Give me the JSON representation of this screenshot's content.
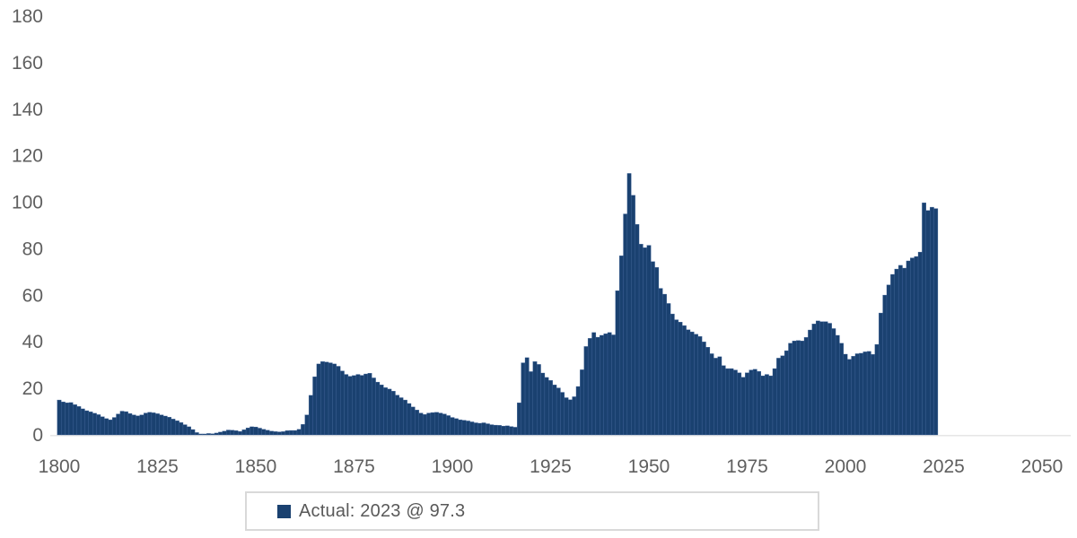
{
  "legend": {
    "label": "Actual: 2023 @ 97.3",
    "swatch_color": "#1a4170"
  },
  "colors": {
    "bar_fill": "#1a4170",
    "bar_seam": "#41659a",
    "axis_text": "#5f5f5f",
    "axis_line": "#e3e3e3",
    "background": "#ffffff",
    "legend_border": "#d9d9d9"
  },
  "chart_data": {
    "type": "bar",
    "title": "",
    "series": [
      {
        "name": "Actual: 2023 @ 97.3",
        "start_year": 1800,
        "end_year": 2023,
        "values": [
          15.0,
          14.2,
          13.8,
          13.9,
          13.0,
          12.2,
          11.2,
          10.4,
          9.9,
          9.3,
          8.7,
          7.8,
          7.0,
          6.5,
          7.5,
          9.0,
          10.2,
          10.0,
          9.2,
          8.6,
          8.2,
          8.6,
          9.4,
          9.7,
          9.5,
          9.1,
          8.6,
          8.1,
          7.6,
          6.8,
          6.1,
          5.3,
          4.4,
          3.5,
          2.3,
          1.0,
          0.4,
          0.4,
          0.6,
          0.5,
          0.8,
          1.2,
          1.6,
          2.1,
          2.0,
          1.8,
          1.5,
          2.2,
          3.0,
          3.5,
          3.4,
          2.9,
          2.4,
          2.0,
          1.6,
          1.4,
          1.3,
          1.4,
          1.8,
          1.9,
          1.9,
          2.4,
          4.5,
          8.6,
          17.0,
          25.0,
          30.5,
          31.5,
          31.3,
          31.0,
          30.5,
          29.5,
          27.5,
          26.0,
          25.2,
          25.5,
          26.0,
          25.6,
          26.2,
          26.5,
          24.5,
          22.7,
          21.5,
          20.3,
          19.7,
          18.8,
          17.1,
          16.0,
          15.0,
          13.5,
          12.0,
          10.7,
          9.4,
          8.8,
          9.4,
          9.6,
          9.7,
          9.4,
          9.0,
          8.3,
          7.5,
          7.0,
          6.5,
          6.3,
          6.0,
          5.6,
          5.2,
          5.0,
          5.2,
          4.8,
          4.4,
          4.2,
          4.1,
          3.8,
          3.9,
          3.6,
          3.3,
          13.8,
          31.0,
          33.2,
          27.2,
          31.5,
          30.3,
          26.6,
          24.7,
          23.4,
          21.5,
          20.2,
          18.3,
          16.0,
          15.1,
          16.4,
          20.8,
          28.0,
          38.0,
          41.5,
          44.0,
          42.0,
          42.8,
          43.5,
          44.0,
          43.0,
          62.0,
          77.0,
          95.0,
          112.4,
          103.0,
          90.5,
          82.0,
          80.5,
          81.5,
          74.5,
          72.0,
          63.0,
          60.5,
          56.5,
          52.0,
          49.5,
          48.5,
          47.0,
          45.2,
          44.3,
          43.3,
          42.3,
          40.0,
          37.7,
          34.9,
          33.0,
          33.6,
          29.8,
          28.5,
          28.5,
          27.9,
          26.7,
          24.8,
          26.7,
          27.9,
          28.2,
          27.3,
          25.4,
          26.0,
          25.4,
          28.5,
          33.0,
          34.0,
          36.2,
          39.4,
          40.4,
          40.6,
          40.4,
          41.9,
          45.1,
          47.7,
          49.0,
          48.7,
          48.7,
          48.0,
          45.7,
          42.8,
          39.4,
          34.7,
          32.5,
          33.8,
          34.9,
          35.1,
          35.7,
          35.9,
          34.6,
          38.9,
          52.4,
          60.1,
          64.5,
          69.0,
          71.3,
          72.9,
          71.7,
          74.8,
          76.1,
          76.7,
          78.6,
          99.8,
          96.5,
          97.9,
          97.3
        ]
      }
    ],
    "x_axis_ticks": [
      1800,
      1825,
      1850,
      1875,
      1900,
      1925,
      1950,
      1975,
      2000,
      2025,
      2050
    ],
    "y_axis_ticks": [
      0,
      20,
      40,
      60,
      80,
      100,
      120,
      140,
      160,
      180
    ],
    "xlim": [
      1800,
      2050
    ],
    "ylim": [
      0,
      180
    ],
    "grid": "off",
    "legend_position": "bottom",
    "last_point_label": "2023 @ 97.3"
  }
}
